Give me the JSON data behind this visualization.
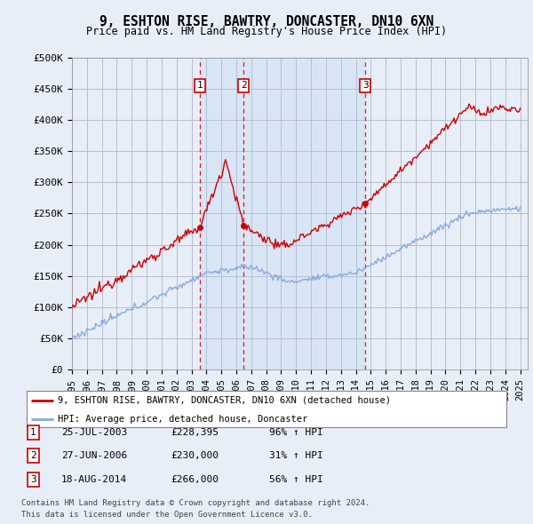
{
  "title": "9, ESHTON RISE, BAWTRY, DONCASTER, DN10 6XN",
  "subtitle": "Price paid vs. HM Land Registry's House Price Index (HPI)",
  "ylim": [
    0,
    500000
  ],
  "yticks": [
    0,
    50000,
    100000,
    150000,
    200000,
    250000,
    300000,
    350000,
    400000,
    450000,
    500000
  ],
  "ytick_labels": [
    "£0",
    "£50K",
    "£100K",
    "£150K",
    "£200K",
    "£250K",
    "£300K",
    "£350K",
    "£400K",
    "£450K",
    "£500K"
  ],
  "xlim_start": 1995.0,
  "xlim_end": 2025.5,
  "sale_dates": [
    2003.56,
    2006.49,
    2014.63
  ],
  "sale_prices": [
    228395,
    230000,
    266000
  ],
  "sale_labels": [
    "1",
    "2",
    "3"
  ],
  "legend_entry1": "9, ESHTON RISE, BAWTRY, DONCASTER, DN10 6XN (detached house)",
  "legend_entry2": "HPI: Average price, detached house, Doncaster",
  "table_entries": [
    {
      "num": "1",
      "date": "25-JUL-2003",
      "price": "£228,395",
      "hpi": "96% ↑ HPI"
    },
    {
      "num": "2",
      "date": "27-JUN-2006",
      "price": "£230,000",
      "hpi": "31% ↑ HPI"
    },
    {
      "num": "3",
      "date": "18-AUG-2014",
      "price": "£266,000",
      "hpi": "56% ↑ HPI"
    }
  ],
  "footnote1": "Contains HM Land Registry data © Crown copyright and database right 2024.",
  "footnote2": "This data is licensed under the Open Government Licence v3.0.",
  "bg_color": "#e8eef8",
  "plot_bg": "#e8eef8",
  "grid_color": "#bbbbcc",
  "red_color": "#cc0000",
  "blue_color": "#88aadd",
  "shade_color": "#dde8f5"
}
